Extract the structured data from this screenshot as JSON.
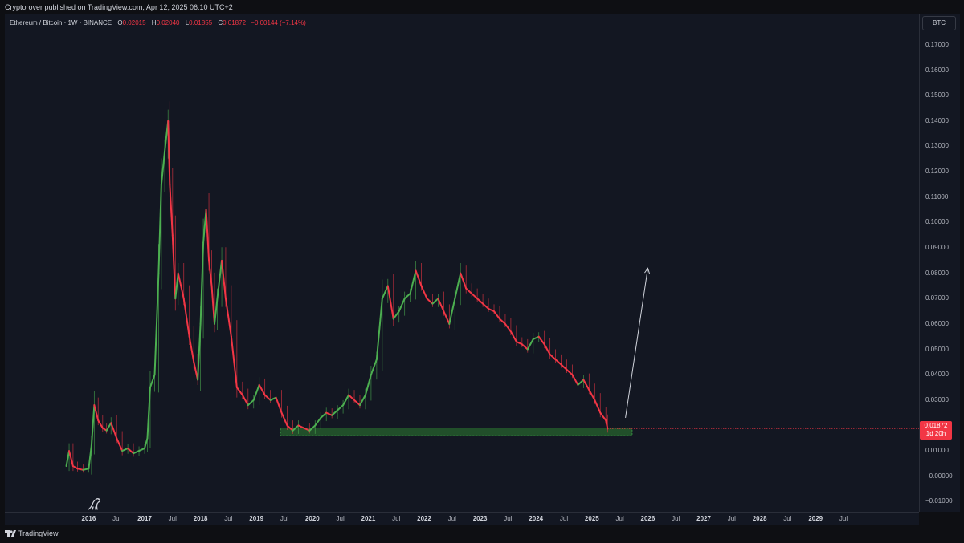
{
  "header": {
    "published": "Cryptorover published on TradingView.com, Apr 12, 2025 06:10 UTC+2"
  },
  "legend": {
    "symbol": "Ethereum / Bitcoin · 1W · BINANCE",
    "o_label": "O",
    "o_value": "0.02015",
    "h_label": "H",
    "h_value": "0.02040",
    "l_label": "L",
    "l_value": "0.01855",
    "c_label": "C",
    "c_value": "0.01872",
    "change": "−0.00144 (−7.14%)"
  },
  "currency_button": "BTC",
  "last_price": {
    "value": "0.01872",
    "countdown": "1d 20h"
  },
  "footer": {
    "brand": "TradingView"
  },
  "colors": {
    "up": "#4caf50",
    "down": "#f23645",
    "background": "#131722",
    "zone": "#2e7d32"
  },
  "chart_data": {
    "type": "line",
    "y_tick_labels": [
      "0.17000",
      "0.16000",
      "0.15000",
      "0.14000",
      "0.13000",
      "0.12000",
      "0.11000",
      "0.10000",
      "0.09000",
      "0.08000",
      "0.07000",
      "0.06000",
      "0.05000",
      "0.04000",
      "0.03000",
      "0.02000",
      "0.01000",
      "−0.00000",
      "−0.01000"
    ],
    "x_tick_labels": [
      "2016",
      "Jul",
      "2017",
      "Jul",
      "2018",
      "Jul",
      "2019",
      "Jul",
      "2020",
      "Jul",
      "2021",
      "Jul",
      "2022",
      "Jul",
      "2023",
      "Jul",
      "2024",
      "Jul",
      "2025",
      "Jul",
      "2026",
      "Jul",
      "2027",
      "Jul",
      "2028",
      "Jul",
      "2029",
      "Jul"
    ],
    "x_label_years": [
      2016.0,
      2016.5,
      2017.0,
      2017.5,
      2018.0,
      2018.5,
      2019.0,
      2019.5,
      2020.0,
      2020.5,
      2021.0,
      2021.5,
      2022.0,
      2022.5,
      2023.0,
      2023.5,
      2024.0,
      2024.5,
      2025.0,
      2025.5,
      2026.0,
      2026.5,
      2027.0,
      2027.5,
      2028.0,
      2028.5,
      2029.0,
      2029.5
    ],
    "ylim": [
      -0.014,
      0.182
    ],
    "xlim": [
      2014.5,
      2030.85
    ],
    "series": [
      {
        "x": [
          2015.6,
          2015.65,
          2015.72,
          2015.8,
          2015.9,
          2016.0,
          2016.05,
          2016.1,
          2016.17,
          2016.25,
          2016.32,
          2016.4,
          2016.5,
          2016.6,
          2016.7,
          2016.8,
          2016.9,
          2017.0,
          2017.05,
          2017.1,
          2017.18,
          2017.25,
          2017.3,
          2017.36,
          2017.42,
          2017.45,
          2017.5,
          2017.55,
          2017.6,
          2017.7,
          2017.8,
          2017.88,
          2017.95,
          2018.0,
          2018.05,
          2018.1,
          2018.15,
          2018.2,
          2018.25,
          2018.3,
          2018.38,
          2018.45,
          2018.55,
          2018.65,
          2018.75,
          2018.85,
          2018.95,
          2019.05,
          2019.15,
          2019.25,
          2019.35,
          2019.45,
          2019.55,
          2019.65,
          2019.75,
          2019.85,
          2019.95,
          2020.05,
          2020.15,
          2020.25,
          2020.35,
          2020.45,
          2020.55,
          2020.65,
          2020.75,
          2020.85,
          2020.95,
          2021.05,
          2021.15,
          2021.25,
          2021.35,
          2021.45,
          2021.55,
          2021.65,
          2021.75,
          2021.85,
          2021.95,
          2022.05,
          2022.15,
          2022.25,
          2022.35,
          2022.45,
          2022.55,
          2022.65,
          2022.75,
          2022.85,
          2022.95,
          2023.05,
          2023.15,
          2023.25,
          2023.35,
          2023.45,
          2023.55,
          2023.65,
          2023.75,
          2023.85,
          2023.95,
          2024.05,
          2024.15,
          2024.25,
          2024.35,
          2024.45,
          2024.55,
          2024.65,
          2024.75,
          2024.85,
          2024.95,
          2025.05,
          2025.15,
          2025.25,
          2025.28
        ],
        "values": [
          0.004,
          0.01,
          0.004,
          0.003,
          0.0025,
          0.003,
          0.012,
          0.028,
          0.022,
          0.019,
          0.018,
          0.021,
          0.015,
          0.01,
          0.011,
          0.009,
          0.01,
          0.011,
          0.015,
          0.035,
          0.04,
          0.08,
          0.115,
          0.128,
          0.14,
          0.115,
          0.095,
          0.07,
          0.08,
          0.07,
          0.055,
          0.045,
          0.038,
          0.06,
          0.092,
          0.105,
          0.085,
          0.075,
          0.06,
          0.07,
          0.085,
          0.07,
          0.055,
          0.035,
          0.032,
          0.028,
          0.03,
          0.036,
          0.032,
          0.03,
          0.031,
          0.025,
          0.02,
          0.018,
          0.02,
          0.019,
          0.018,
          0.02,
          0.023,
          0.025,
          0.024,
          0.026,
          0.028,
          0.032,
          0.03,
          0.028,
          0.032,
          0.04,
          0.046,
          0.07,
          0.075,
          0.062,
          0.065,
          0.07,
          0.072,
          0.081,
          0.075,
          0.07,
          0.068,
          0.07,
          0.065,
          0.06,
          0.07,
          0.08,
          0.074,
          0.072,
          0.07,
          0.068,
          0.066,
          0.065,
          0.062,
          0.06,
          0.057,
          0.053,
          0.052,
          0.05,
          0.054,
          0.055,
          0.052,
          0.048,
          0.046,
          0.044,
          0.042,
          0.04,
          0.036,
          0.038,
          0.034,
          0.03,
          0.025,
          0.022,
          0.0187
        ]
      }
    ],
    "zone": {
      "x_start": 2019.43,
      "x_end": 2025.72,
      "y_low": 0.016,
      "y_high": 0.019
    },
    "projection_arrow": {
      "x_from": 2025.6,
      "y_from": 0.023,
      "x_to": 2026.0,
      "y_to": 0.082
    },
    "grid": false
  }
}
